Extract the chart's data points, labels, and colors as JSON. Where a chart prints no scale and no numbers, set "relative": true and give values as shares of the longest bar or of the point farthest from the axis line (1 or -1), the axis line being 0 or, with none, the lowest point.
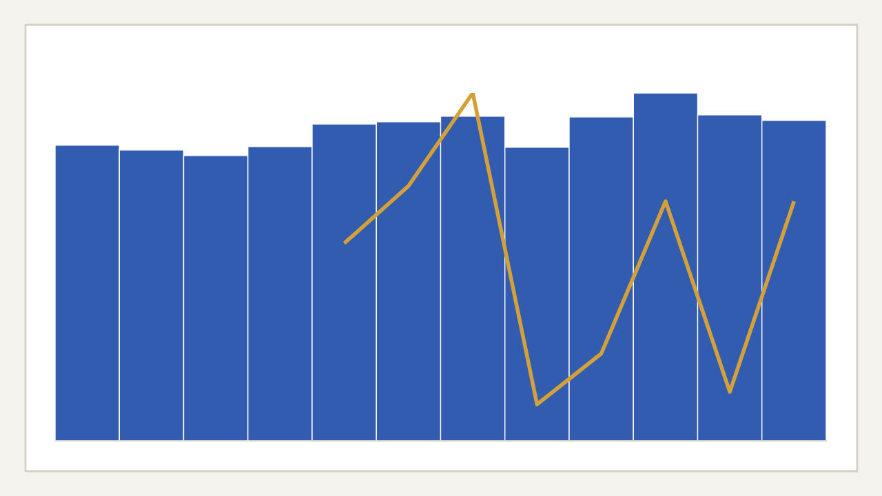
{
  "chart_data": [
    {
      "type": "bar",
      "relative": true,
      "color": "#315cb0",
      "categories": [
        null,
        null,
        null,
        null,
        null,
        null,
        null,
        null,
        null,
        null,
        null,
        null
      ],
      "values": [
        0.85,
        0.836,
        0.82,
        0.846,
        0.911,
        0.917,
        0.933,
        0.844,
        0.931,
        1.0,
        0.937,
        0.921
      ]
    },
    {
      "type": "line",
      "relative": true,
      "color": "#d4a038",
      "categories": [
        null,
        null,
        null,
        null,
        null,
        null,
        null,
        null
      ],
      "values": [
        0.568,
        0.733,
        1.0,
        0.105,
        0.251,
        0.689,
        0.141,
        0.689
      ]
    }
  ]
}
